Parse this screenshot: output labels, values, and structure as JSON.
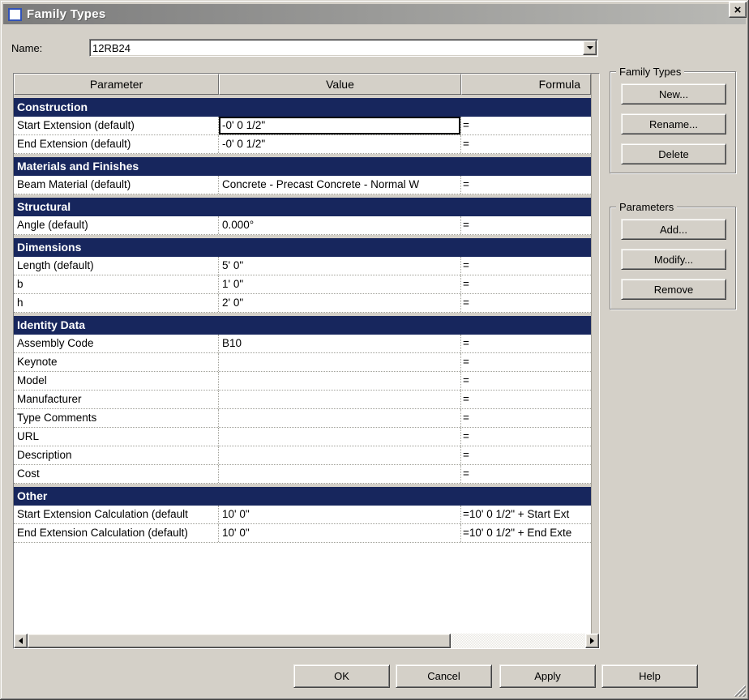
{
  "window": {
    "title": "Family Types",
    "close_glyph": "×"
  },
  "name_field": {
    "label": "Name:",
    "value": "12RB24"
  },
  "table": {
    "columns": [
      "Parameter",
      "Value",
      "Formula"
    ],
    "sections": [
      {
        "title": "Construction",
        "rows": [
          {
            "parameter": "Start Extension (default)",
            "value": "-0'  0 1/2\"",
            "formula": "=",
            "selected": true
          },
          {
            "parameter": "End Extension (default)",
            "value": "-0'  0 1/2\"",
            "formula": "="
          }
        ]
      },
      {
        "title": "Materials and Finishes",
        "rows": [
          {
            "parameter": "Beam Material (default)",
            "value": "Concrete - Precast Concrete - Normal W",
            "formula": "="
          }
        ]
      },
      {
        "title": "Structural",
        "rows": [
          {
            "parameter": "Angle (default)",
            "value": "0.000°",
            "formula": "="
          }
        ]
      },
      {
        "title": "Dimensions",
        "rows": [
          {
            "parameter": "Length (default)",
            "value": "5'  0\"",
            "formula": "="
          },
          {
            "parameter": "b",
            "value": "1'  0\"",
            "formula": "="
          },
          {
            "parameter": "h",
            "value": "2'  0\"",
            "formula": "="
          }
        ]
      },
      {
        "title": "Identity Data",
        "rows": [
          {
            "parameter": "Assembly Code",
            "value": "B10",
            "formula": "="
          },
          {
            "parameter": "Keynote",
            "value": "",
            "formula": "="
          },
          {
            "parameter": "Model",
            "value": "",
            "formula": "="
          },
          {
            "parameter": "Manufacturer",
            "value": "",
            "formula": "="
          },
          {
            "parameter": "Type Comments",
            "value": "",
            "formula": "="
          },
          {
            "parameter": "URL",
            "value": "",
            "formula": "="
          },
          {
            "parameter": "Description",
            "value": "",
            "formula": "="
          },
          {
            "parameter": "Cost",
            "value": "",
            "formula": "="
          }
        ]
      },
      {
        "title": "Other",
        "rows": [
          {
            "parameter": "Start Extension Calculation (default",
            "value": "10'  0\"",
            "formula": "=10'  0 1/2\" + Start Ext"
          },
          {
            "parameter": "End Extension Calculation (default)",
            "value": "10'  0\"",
            "formula": "=10'  0 1/2\" + End Exte"
          }
        ]
      }
    ]
  },
  "family_types_group": {
    "title": "Family Types",
    "buttons": [
      "New...",
      "Rename...",
      "Delete"
    ]
  },
  "parameters_group": {
    "title": "Parameters",
    "buttons": [
      "Add...",
      "Modify...",
      "Remove"
    ]
  },
  "footer": {
    "buttons": [
      "OK",
      "Cancel",
      "Apply",
      "Help"
    ]
  },
  "colors": {
    "dialog_bg": "#d4d0c8",
    "section_header_bg": "#17265d",
    "section_header_text": "#ffffff",
    "selection_border": "#000000"
  }
}
